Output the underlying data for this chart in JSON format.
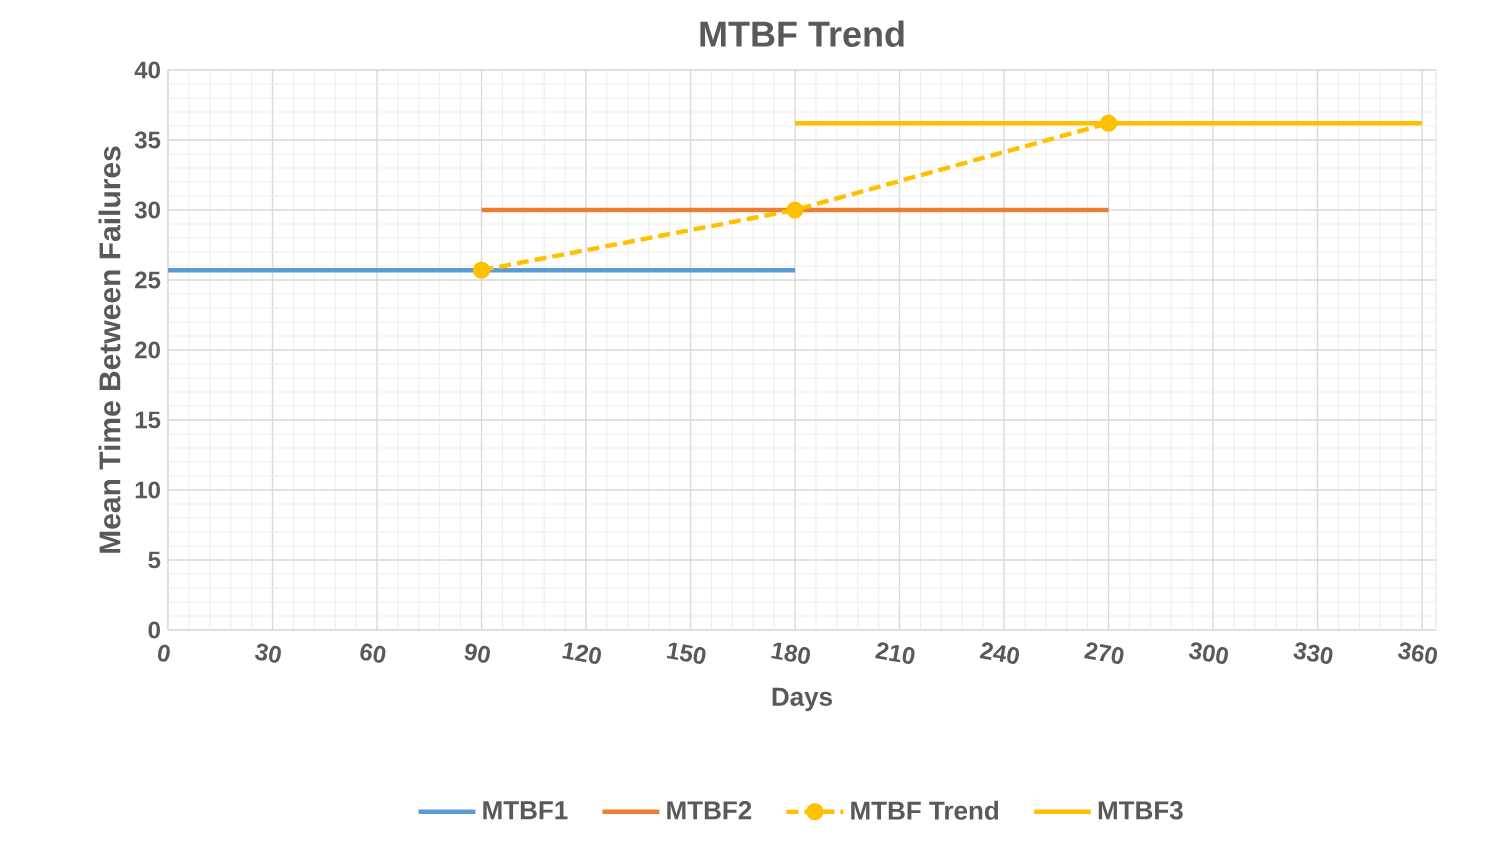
{
  "chart_data": {
    "type": "line",
    "title": "MTBF Trend",
    "xlabel": "Days",
    "ylabel": "Mean Time Between Failures",
    "xlim": [
      0,
      364
    ],
    "xticks": [
      0,
      30,
      60,
      90,
      120,
      150,
      180,
      210,
      240,
      270,
      300,
      330,
      360
    ],
    "ylim": [
      0,
      40
    ],
    "yticks": [
      0,
      5,
      10,
      15,
      20,
      25,
      30,
      35,
      40
    ],
    "grid": true,
    "legend": "bottom",
    "series": [
      {
        "name": "MTBF1",
        "color": "#5b9bd5",
        "x": [
          0,
          180
        ],
        "values": [
          25.7,
          25.7
        ]
      },
      {
        "name": "MTBF2",
        "color": "#ed7d31",
        "x": [
          90,
          270
        ],
        "values": [
          30,
          30
        ]
      },
      {
        "name": "MTBF Trend",
        "color": "#ffc000",
        "x": [
          90,
          180,
          270
        ],
        "values": [
          25.7,
          30,
          36.2
        ],
        "line_style": "dashed",
        "marker": "circle"
      },
      {
        "name": "MTBF3",
        "color": "#ffc000",
        "x": [
          180,
          360
        ],
        "values": [
          36.2,
          36.2
        ]
      }
    ]
  }
}
